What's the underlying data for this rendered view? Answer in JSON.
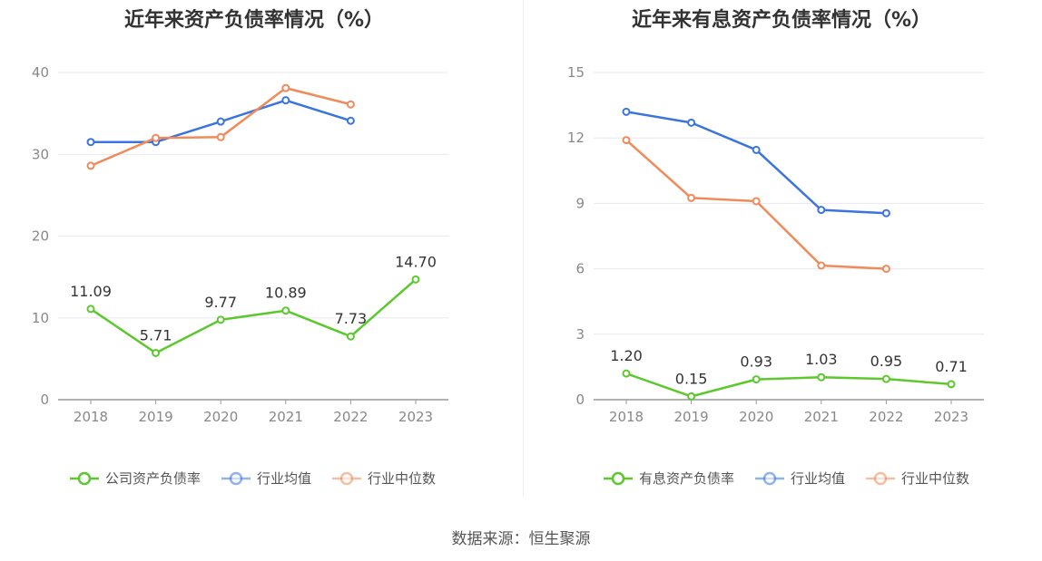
{
  "source": "数据来源：恒生聚源",
  "chart_data": [
    {
      "type": "line",
      "title": "近年来资产负债率情况（%）",
      "categories": [
        "2018",
        "2019",
        "2020",
        "2021",
        "2022",
        "2023"
      ],
      "ylim": [
        0,
        40
      ],
      "yticks": [
        0,
        10,
        20,
        30,
        40
      ],
      "grid": true,
      "legend_position": "bottom",
      "series": [
        {
          "name": "公司资产负债率",
          "color": "#5cc82d",
          "values": [
            11.09,
            5.71,
            9.77,
            10.89,
            7.73,
            14.7
          ],
          "labels": [
            "11.09",
            "5.71",
            "9.77",
            "10.89",
            "7.73",
            "14.70"
          ]
        },
        {
          "name": "行业均值",
          "color": "#3b74e0",
          "values": [
            31.5,
            31.5,
            34.0,
            36.6,
            34.1,
            null
          ]
        },
        {
          "name": "行业中位数",
          "color": "#f08a5a",
          "values": [
            28.6,
            32.0,
            32.1,
            38.1,
            36.1,
            null
          ]
        }
      ]
    },
    {
      "type": "line",
      "title": "近年来有息资产负债率情况（%）",
      "categories": [
        "2018",
        "2019",
        "2020",
        "2021",
        "2022",
        "2023"
      ],
      "ylim": [
        0,
        15
      ],
      "yticks": [
        0,
        3,
        6,
        9,
        12,
        15
      ],
      "grid": true,
      "legend_position": "bottom",
      "series": [
        {
          "name": "有息资产负债率",
          "color": "#5cc82d",
          "values": [
            1.2,
            0.15,
            0.93,
            1.03,
            0.95,
            0.71
          ],
          "labels": [
            "1.20",
            "0.15",
            "0.93",
            "1.03",
            "0.95",
            "0.71"
          ]
        },
        {
          "name": "行业均值",
          "color": "#3b74e0",
          "values": [
            13.2,
            12.7,
            11.45,
            8.7,
            8.55,
            null
          ]
        },
        {
          "name": "行业中位数",
          "color": "#f08a5a",
          "values": [
            11.9,
            9.25,
            9.1,
            6.15,
            6.0,
            null
          ]
        }
      ]
    }
  ]
}
